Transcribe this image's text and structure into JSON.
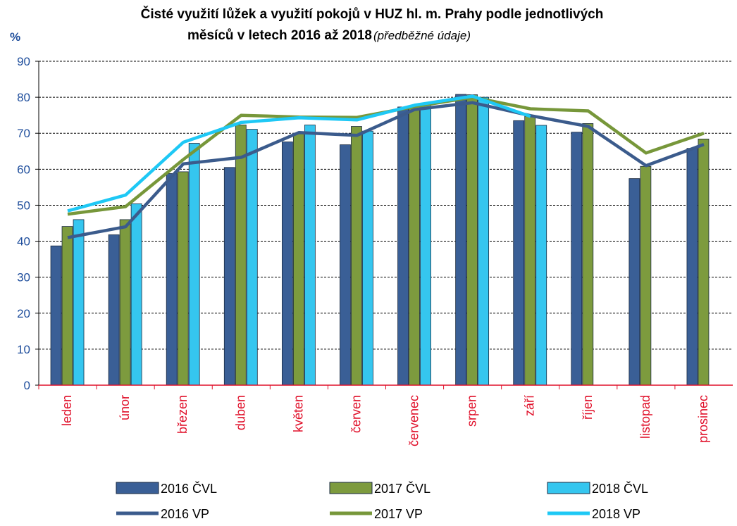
{
  "chart_data": {
    "type": "bar_line",
    "title": [
      "Čisté využití lůžek a využití pokojů v HUZ hl. m. Prahy podle jednotlivých",
      "měsíců v letech 2016 až 2018"
    ],
    "subtitle": "(předběžné údaje)",
    "y_label": "%",
    "categories": [
      "leden",
      "únor",
      "březen",
      "duben",
      "květen",
      "červen",
      "červenec",
      "srpen",
      "září",
      "říjen",
      "listopad",
      "prosinec"
    ],
    "series": [
      {
        "name": "2016 ČVL",
        "kind": "bar",
        "color": "#3a5f96",
        "values": [
          38.7,
          41.8,
          58.8,
          60.5,
          67.6,
          66.8,
          77.3,
          80.8,
          73.5,
          70.3,
          57.4,
          65.8
        ]
      },
      {
        "name": "2017 ČVL",
        "kind": "bar",
        "color": "#7d9b3e",
        "values": [
          44.1,
          46.0,
          59.3,
          72.3,
          70.0,
          71.9,
          77.0,
          80.7,
          74.7,
          72.7,
          60.8,
          68.4
        ]
      },
      {
        "name": "2018 ČVL",
        "kind": "bar",
        "color": "#35c6ef",
        "values": [
          46.0,
          50.4,
          67.2,
          71.1,
          72.3,
          70.6,
          78.0,
          80.0,
          72.2,
          null,
          null,
          null
        ]
      },
      {
        "name": "2016 VP",
        "kind": "line",
        "color": "#3b5b8c",
        "values": [
          41.0,
          44.0,
          61.5,
          63.3,
          70.2,
          69.4,
          76.6,
          78.5,
          74.9,
          71.9,
          61.0,
          66.9
        ]
      },
      {
        "name": "2017 VP",
        "kind": "line",
        "color": "#77973a",
        "values": [
          47.5,
          49.6,
          62.7,
          75.0,
          74.5,
          74.4,
          77.4,
          80.0,
          76.8,
          76.2,
          64.5,
          70.0
        ]
      },
      {
        "name": "2018 VP",
        "kind": "line",
        "color": "#1ec8f5",
        "values": [
          48.4,
          52.8,
          67.5,
          73.0,
          74.3,
          73.7,
          77.8,
          80.3,
          74.7,
          null,
          null,
          null
        ]
      }
    ],
    "ylim": [
      0,
      90
    ],
    "yticks": [
      0,
      10,
      20,
      30,
      40,
      50,
      60,
      70,
      80,
      90
    ],
    "grid": true
  }
}
